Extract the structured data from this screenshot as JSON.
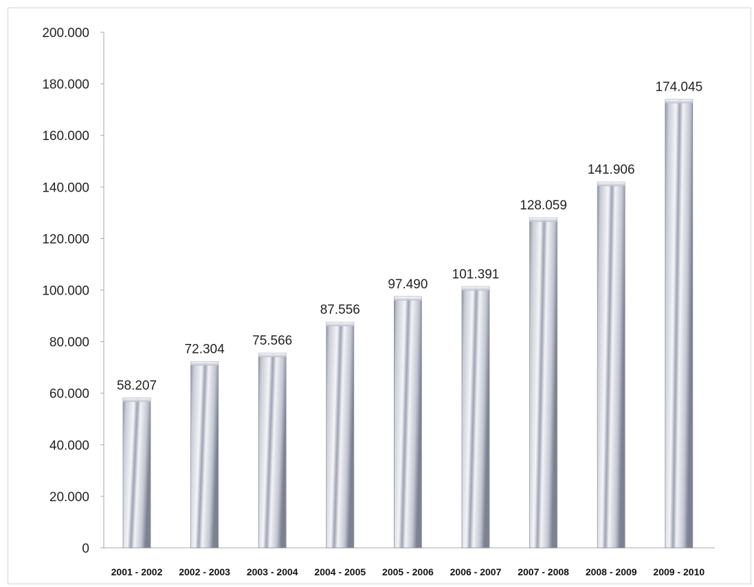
{
  "chart_data": {
    "type": "bar",
    "categories": [
      "2001 - 2002",
      "2002 - 2003",
      "2003 - 2004",
      "2004 - 2005",
      "2005 - 2006",
      "2006 - 2007",
      "2007 - 2008",
      "2008 - 2009",
      "2009 - 2010"
    ],
    "values": [
      58207,
      72304,
      75566,
      87556,
      97490,
      101391,
      128059,
      141906,
      174045
    ],
    "data_labels": [
      "58.207",
      "72.304",
      "75.566",
      "87.556",
      "97.490",
      "101.391",
      "128.059",
      "141.906",
      "174.045"
    ],
    "yticks": [
      0,
      20000,
      40000,
      60000,
      80000,
      100000,
      120000,
      140000,
      160000,
      180000,
      200000
    ],
    "ytick_labels": [
      "0",
      "20.000",
      "40.000",
      "60.000",
      "80.000",
      "100.000",
      "120.000",
      "140.000",
      "160.000",
      "180.000",
      "200.000"
    ],
    "ylim": [
      0,
      200000
    ],
    "title": "",
    "xlabel": "",
    "ylabel": "",
    "grid": false,
    "legend": "none",
    "bar_color": "#b8bcc8"
  }
}
